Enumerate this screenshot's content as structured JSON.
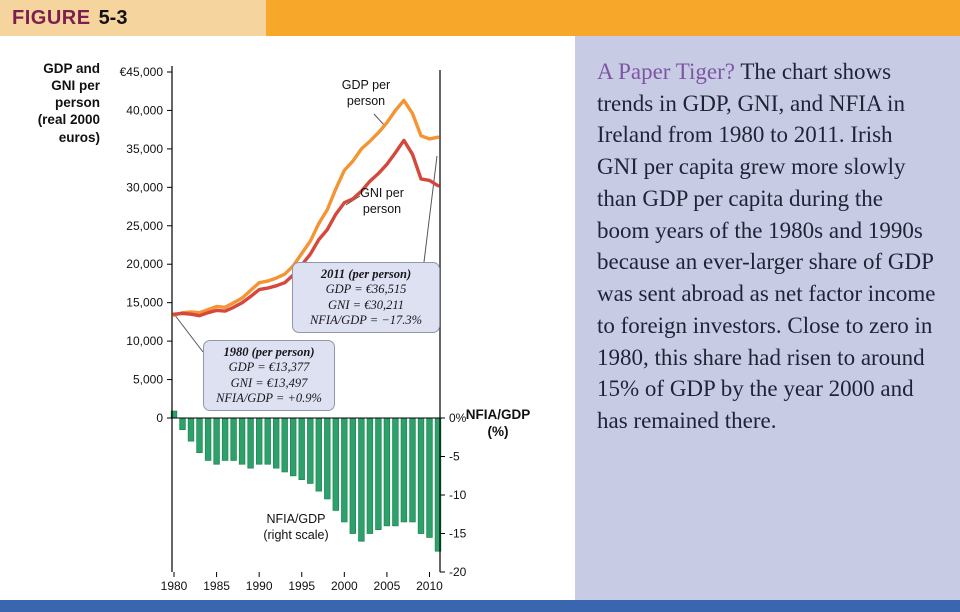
{
  "header": {
    "figure_word": "FIGURE",
    "figure_number": "5-3"
  },
  "colors": {
    "header_tan": "#F6D49E",
    "header_orange": "#F7A82A",
    "caption_bg": "#C7CCE4",
    "bottom_bar": "#3A66B0",
    "gdp_line": "#F49434",
    "gni_line": "#D5483C",
    "nfia_bar": "#2EA06B",
    "callout_bg": "#DEE1F2",
    "caption_lead_color": "#7D55A4"
  },
  "chart_data": {
    "type": "line+bar",
    "title": "",
    "x": [
      1980,
      1981,
      1982,
      1983,
      1984,
      1985,
      1986,
      1987,
      1988,
      1989,
      1990,
      1991,
      1992,
      1993,
      1994,
      1995,
      1996,
      1997,
      1998,
      1999,
      2000,
      2001,
      2002,
      2003,
      2004,
      2005,
      2006,
      2007,
      2008,
      2009,
      2010,
      2011
    ],
    "x_ticks": [
      "1980",
      "1985",
      "1990",
      "1995",
      "2000",
      "2005",
      "2010"
    ],
    "left_axis": {
      "label": "GDP and GNI per person (real 2000 euros)",
      "label_display": "GDP and\nGNI per\nperson\n(real 2000\neuros)",
      "range": [
        0,
        45000
      ],
      "ticks": [
        "€45,000",
        "40,000",
        "35,000",
        "30,000",
        "25,000",
        "20,000",
        "15,000",
        "10,000",
        "5,000",
        "0"
      ]
    },
    "right_axis": {
      "label": "NFIA/GDP (%)",
      "label_display": "NFIA/GDP\n(%)",
      "range": [
        0,
        -20
      ],
      "ticks": [
        "0%",
        "-5",
        "-10",
        "-15",
        "-20"
      ]
    },
    "series": [
      {
        "name": "GDP per person",
        "chart_label": "GDP per\nperson",
        "axis": "left",
        "style": "line",
        "color": "#F49434",
        "values": [
          13377,
          13700,
          13800,
          13700,
          14100,
          14500,
          14400,
          15000,
          15600,
          16600,
          17600,
          17800,
          18200,
          18700,
          19800,
          21400,
          23000,
          25300,
          27100,
          29800,
          32200,
          33400,
          35000,
          36000,
          37100,
          38400,
          40000,
          41300,
          39600,
          36700,
          36300,
          36515
        ]
      },
      {
        "name": "GNI per person",
        "chart_label": "GNI per\nperson",
        "axis": "left",
        "style": "line",
        "color": "#D5483C",
        "values": [
          13497,
          13600,
          13500,
          13300,
          13700,
          14000,
          13900,
          14400,
          15000,
          15800,
          16700,
          16900,
          17200,
          17600,
          18600,
          19900,
          21300,
          23200,
          24500,
          26500,
          28000,
          28500,
          29500,
          30800,
          31800,
          33000,
          34500,
          36100,
          34300,
          31100,
          30900,
          30211
        ]
      },
      {
        "name": "NFIA/GDP (right scale)",
        "chart_label": "NFIA/GDP\n(right scale)",
        "axis": "right",
        "style": "bar",
        "color": "#2EA06B",
        "values": [
          0.9,
          -1.5,
          -3.0,
          -4.5,
          -5.5,
          -6.0,
          -5.5,
          -5.5,
          -6.0,
          -6.5,
          -6.0,
          -6.0,
          -6.5,
          -7.0,
          -7.5,
          -8.0,
          -8.5,
          -9.5,
          -10.5,
          -12.0,
          -13.5,
          -15.0,
          -16.0,
          -15.0,
          -14.5,
          -14.0,
          -14.0,
          -13.5,
          -13.5,
          -15.0,
          -15.5,
          -17.3
        ]
      }
    ],
    "annotations": [
      {
        "title": "2011 (per person)",
        "lines": [
          "GDP = €36,515",
          "GNI = €30,211",
          "NFIA/GDP = −17.3%"
        ]
      },
      {
        "title": "1980 (per person)",
        "lines": [
          "GDP = €13,377",
          "GNI = €13,497",
          "NFIA/GDP = +0.9%"
        ]
      }
    ]
  },
  "caption": {
    "lead": "A Paper Tiger?",
    "body": "The chart shows trends in GDP, GNI, and NFIA in Ireland from 1980 to 2011. Irish GNI per capita grew more slowly than GDP per capita during the boom years of the 1980s and 1990s because an ever-larger share of GDP was sent abroad as net factor income to foreign investors. Close to zero in 1980, this share had risen to around 15% of GDP by the year 2000 and has remained there."
  }
}
